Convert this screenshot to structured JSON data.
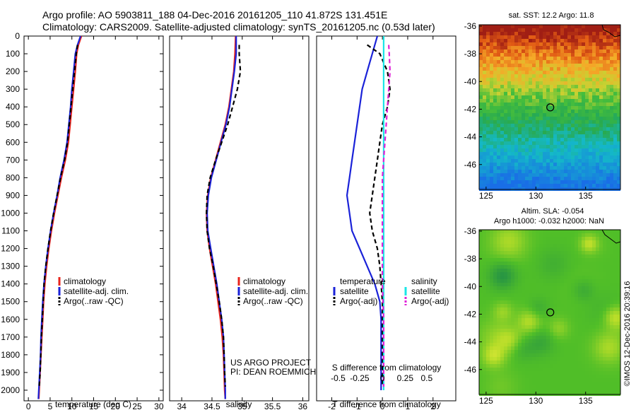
{
  "header": {
    "line1": "Argo profile: AO 5903811_188 04-Dec-2016 20161205_110 41.872S 131.451E",
    "line2": "Climatology: CARS2009. Satellite-adjusted climatology: synTS_20161205.nc (0.53d later)"
  },
  "colors": {
    "climatology": "#e8241c",
    "satellite": "#1a22d8",
    "argo": "#000000",
    "sal_satellite": "#19e6e6",
    "sal_argo": "#e020d8"
  },
  "chart_data": [
    {
      "type": "line",
      "panel": "temperature",
      "xlabel": "temperature (deg C)",
      "ylabel": "",
      "xlim": [
        -1,
        31
      ],
      "ylim": [
        2060,
        0
      ],
      "x_ticks": [
        0,
        5,
        10,
        15,
        20,
        25,
        30
      ],
      "y_ticks": [
        0,
        100,
        200,
        300,
        400,
        500,
        600,
        700,
        800,
        900,
        1000,
        1100,
        1200,
        1300,
        1400,
        1500,
        1600,
        1700,
        1800,
        1900,
        2000
      ],
      "legend": [
        "climatology",
        "satellite-adj. clim.",
        "Argo(..raw -QC)"
      ],
      "series": [
        {
          "name": "climatology",
          "style": "solid",
          "color": "#e8241c",
          "points": [
            [
              12.2,
              0
            ],
            [
              11.5,
              50
            ],
            [
              11.1,
              100
            ],
            [
              10.8,
              200
            ],
            [
              10.4,
              300
            ],
            [
              10.0,
              400
            ],
            [
              9.6,
              500
            ],
            [
              9.2,
              600
            ],
            [
              8.5,
              700
            ],
            [
              7.6,
              800
            ],
            [
              6.8,
              900
            ],
            [
              6.0,
              1000
            ],
            [
              5.3,
              1100
            ],
            [
              4.7,
              1200
            ],
            [
              4.2,
              1300
            ],
            [
              3.8,
              1400
            ],
            [
              3.5,
              1500
            ],
            [
              3.3,
              1600
            ],
            [
              3.1,
              1700
            ],
            [
              2.9,
              1800
            ],
            [
              2.7,
              1900
            ],
            [
              2.5,
              2000
            ],
            [
              2.4,
              2050
            ]
          ]
        },
        {
          "name": "satellite-adj. clim.",
          "style": "solid",
          "color": "#1a22d8",
          "points": [
            [
              12.0,
              0
            ],
            [
              11.3,
              50
            ],
            [
              10.8,
              100
            ],
            [
              10.4,
              200
            ],
            [
              10.0,
              300
            ],
            [
              9.7,
              400
            ],
            [
              9.3,
              500
            ],
            [
              8.9,
              600
            ],
            [
              8.2,
              700
            ],
            [
              7.3,
              800
            ],
            [
              6.6,
              900
            ],
            [
              5.8,
              1000
            ],
            [
              5.1,
              1100
            ],
            [
              4.5,
              1200
            ],
            [
              4.0,
              1300
            ],
            [
              3.6,
              1400
            ],
            [
              3.3,
              1500
            ],
            [
              3.1,
              1600
            ],
            [
              2.9,
              1700
            ],
            [
              2.8,
              1800
            ],
            [
              2.6,
              1900
            ],
            [
              2.4,
              2000
            ],
            [
              2.3,
              2050
            ]
          ]
        },
        {
          "name": "Argo(..raw -QC)",
          "style": "dash",
          "color": "#000000",
          "points": [
            [
              11.3,
              50
            ],
            [
              11.0,
              100
            ],
            [
              10.6,
              200
            ],
            [
              10.2,
              300
            ],
            [
              9.8,
              400
            ],
            [
              9.4,
              500
            ],
            [
              9.0,
              600
            ],
            [
              8.3,
              700
            ],
            [
              7.4,
              800
            ],
            [
              6.6,
              900
            ],
            [
              5.8,
              1000
            ],
            [
              5.1,
              1100
            ],
            [
              4.5,
              1200
            ],
            [
              4.0,
              1300
            ],
            [
              3.6,
              1400
            ],
            [
              3.4,
              1500
            ],
            [
              3.2,
              1600
            ],
            [
              3.0,
              1700
            ],
            [
              2.85,
              1800
            ],
            [
              2.7,
              1900
            ],
            [
              2.5,
              1980
            ]
          ]
        }
      ],
      "annotations": []
    },
    {
      "type": "line",
      "panel": "salinity",
      "xlabel": "salinity",
      "ylabel": "",
      "xlim": [
        33.8,
        36.1
      ],
      "ylim": [
        2060,
        0
      ],
      "x_ticks": [
        34,
        34.5,
        35,
        35.5,
        36
      ],
      "legend": [
        "climatology",
        "satellite-adj. clim.",
        "Argo(..raw -QC)"
      ],
      "series": [
        {
          "name": "climatology",
          "style": "solid",
          "color": "#e8241c",
          "points": [
            [
              34.89,
              0
            ],
            [
              34.88,
              100
            ],
            [
              34.86,
              200
            ],
            [
              34.82,
              300
            ],
            [
              34.78,
              400
            ],
            [
              34.72,
              500
            ],
            [
              34.64,
              600
            ],
            [
              34.56,
              700
            ],
            [
              34.48,
              800
            ],
            [
              34.43,
              900
            ],
            [
              34.41,
              1000
            ],
            [
              34.42,
              1100
            ],
            [
              34.46,
              1200
            ],
            [
              34.51,
              1300
            ],
            [
              34.56,
              1400
            ],
            [
              34.6,
              1500
            ],
            [
              34.64,
              1600
            ],
            [
              34.67,
              1700
            ],
            [
              34.69,
              1800
            ],
            [
              34.7,
              1900
            ],
            [
              34.71,
              2000
            ],
            [
              34.72,
              2050
            ]
          ]
        },
        {
          "name": "satellite-adj. clim.",
          "style": "solid",
          "color": "#1a22d8",
          "points": [
            [
              34.9,
              0
            ],
            [
              34.9,
              100
            ],
            [
              34.87,
              200
            ],
            [
              34.83,
              300
            ],
            [
              34.79,
              400
            ],
            [
              34.73,
              500
            ],
            [
              34.65,
              600
            ],
            [
              34.57,
              700
            ],
            [
              34.49,
              800
            ],
            [
              34.44,
              900
            ],
            [
              34.42,
              1000
            ],
            [
              34.43,
              1100
            ],
            [
              34.48,
              1200
            ],
            [
              34.53,
              1300
            ],
            [
              34.58,
              1400
            ],
            [
              34.62,
              1500
            ],
            [
              34.66,
              1600
            ],
            [
              34.69,
              1700
            ],
            [
              34.7,
              1800
            ],
            [
              34.71,
              1900
            ],
            [
              34.72,
              2000
            ],
            [
              34.72,
              2050
            ]
          ]
        },
        {
          "name": "Argo(..raw -QC)",
          "style": "dash",
          "color": "#000000",
          "points": [
            [
              34.95,
              50
            ],
            [
              34.95,
              100
            ],
            [
              34.97,
              200
            ],
            [
              34.92,
              300
            ],
            [
              34.84,
              400
            ],
            [
              34.76,
              500
            ],
            [
              34.66,
              600
            ],
            [
              34.56,
              700
            ],
            [
              34.47,
              800
            ],
            [
              34.42,
              900
            ],
            [
              34.41,
              1000
            ],
            [
              34.42,
              1100
            ],
            [
              34.46,
              1200
            ],
            [
              34.52,
              1300
            ],
            [
              34.57,
              1400
            ],
            [
              34.62,
              1500
            ],
            [
              34.66,
              1600
            ],
            [
              34.69,
              1700
            ],
            [
              34.7,
              1800
            ],
            [
              34.71,
              1900
            ],
            [
              34.72,
              1980
            ]
          ]
        }
      ],
      "annotations": [
        "US ARGO PROJECT",
        "PI: DEAN ROEMMICH"
      ]
    },
    {
      "type": "line",
      "panel": "difference",
      "xlabel": "T difference from climatology",
      "xlabel_top": "S difference from climatology",
      "ylim": [
        2060,
        0
      ],
      "t_xlim": [
        -2.6,
        2.9
      ],
      "t_ticks": [
        -2,
        -1,
        0,
        1,
        2
      ],
      "s_ticks": [
        "-0.5",
        "-0.25",
        "0",
        "0.25",
        "0.5"
      ],
      "legend_temperature_title": "temperature",
      "legend_salinity_title": "salinity",
      "legend_temperature": [
        "satellite",
        "Argo(-adj)"
      ],
      "legend_salinity": [
        "satellite",
        "Argo(-adj)"
      ],
      "series": [
        {
          "name": "T satellite",
          "style": "solid",
          "color": "#1a22d8",
          "points": [
            [
              -0.2,
              0
            ],
            [
              -0.3,
              50
            ],
            [
              -0.4,
              100
            ],
            [
              -0.6,
              200
            ],
            [
              -0.8,
              300
            ],
            [
              -0.9,
              400
            ],
            [
              -1.0,
              500
            ],
            [
              -1.1,
              600
            ],
            [
              -1.2,
              700
            ],
            [
              -1.3,
              800
            ],
            [
              -1.4,
              900
            ],
            [
              -1.3,
              1000
            ],
            [
              -1.2,
              1100
            ],
            [
              -0.9,
              1200
            ],
            [
              -0.6,
              1300
            ],
            [
              -0.3,
              1400
            ],
            [
              -0.1,
              1500
            ],
            [
              -0.05,
              1600
            ],
            [
              -0.05,
              1800
            ],
            [
              -0.05,
              2000
            ]
          ]
        },
        {
          "name": "T Argo(-adj)",
          "style": "dash",
          "color": "#000000",
          "points": [
            [
              -0.6,
              50
            ],
            [
              -0.1,
              100
            ],
            [
              0.2,
              200
            ],
            [
              0.3,
              300
            ],
            [
              0.2,
              400
            ],
            [
              0.0,
              500
            ],
            [
              -0.1,
              600
            ],
            [
              -0.2,
              700
            ],
            [
              -0.3,
              800
            ],
            [
              -0.4,
              900
            ],
            [
              -0.5,
              1000
            ],
            [
              -0.4,
              1100
            ],
            [
              -0.2,
              1200
            ],
            [
              -0.1,
              1300
            ],
            [
              -0.05,
              1400
            ],
            [
              0.0,
              1500
            ],
            [
              0.0,
              1600
            ],
            [
              0.0,
              1700
            ],
            [
              0.0,
              1800
            ],
            [
              0.0,
              1980
            ]
          ]
        },
        {
          "name": "S satellite",
          "style": "solid",
          "color": "#19e6e6",
          "points": [
            [
              0.05,
              0
            ],
            [
              0.05,
              100
            ],
            [
              0.05,
              200
            ],
            [
              0.05,
              300
            ],
            [
              0.05,
              400
            ],
            [
              0.05,
              500
            ],
            [
              0.05,
              600
            ],
            [
              0.05,
              700
            ],
            [
              0.05,
              800
            ],
            [
              0.05,
              900
            ],
            [
              0.05,
              1000
            ],
            [
              0.05,
              1200
            ],
            [
              0.05,
              1400
            ],
            [
              0.05,
              1600
            ],
            [
              0.05,
              1800
            ],
            [
              0.05,
              2000
            ]
          ]
        },
        {
          "name": "S Argo(-adj)",
          "style": "dash",
          "color": "#e020d8",
          "points": [
            [
              0.25,
              50
            ],
            [
              0.27,
              100
            ],
            [
              0.3,
              200
            ],
            [
              0.25,
              300
            ],
            [
              0.2,
              400
            ],
            [
              0.15,
              500
            ],
            [
              0.1,
              600
            ],
            [
              0.05,
              700
            ],
            [
              0.0,
              800
            ],
            [
              0.0,
              900
            ],
            [
              0.0,
              1000
            ],
            [
              0.0,
              1200
            ],
            [
              0.0,
              1400
            ],
            [
              0.05,
              1600
            ],
            [
              0.05,
              1800
            ],
            [
              0.05,
              1980
            ]
          ]
        }
      ],
      "annotations": []
    },
    {
      "type": "heatmap",
      "panel": "sst_map",
      "title": "sat. SST: 12.2 Argo: 11.8",
      "xlim": [
        124.3,
        138.5
      ],
      "ylim": [
        -47.8,
        -35.9
      ],
      "x_ticks": [
        125,
        130,
        135
      ],
      "y_ticks": [
        -36,
        -38,
        -40,
        -42,
        -44,
        -46
      ],
      "marker": {
        "lon": 131.45,
        "lat": -41.87
      }
    },
    {
      "type": "heatmap",
      "panel": "sla_map",
      "title": "Altim. SLA: -0.054",
      "subtitle": "Argo h1000: -0.032 h2000: NaN",
      "xlim": [
        124.3,
        138.5
      ],
      "ylim": [
        -47.8,
        -35.9
      ],
      "x_ticks": [
        125,
        130,
        135
      ],
      "y_ticks": [
        -36,
        -38,
        -40,
        -42,
        -44,
        -46
      ],
      "marker": {
        "lon": 131.45,
        "lat": -41.87
      }
    }
  ],
  "footer": {
    "credit": "©IMOS 12-Dec-2016 20:39:16"
  }
}
